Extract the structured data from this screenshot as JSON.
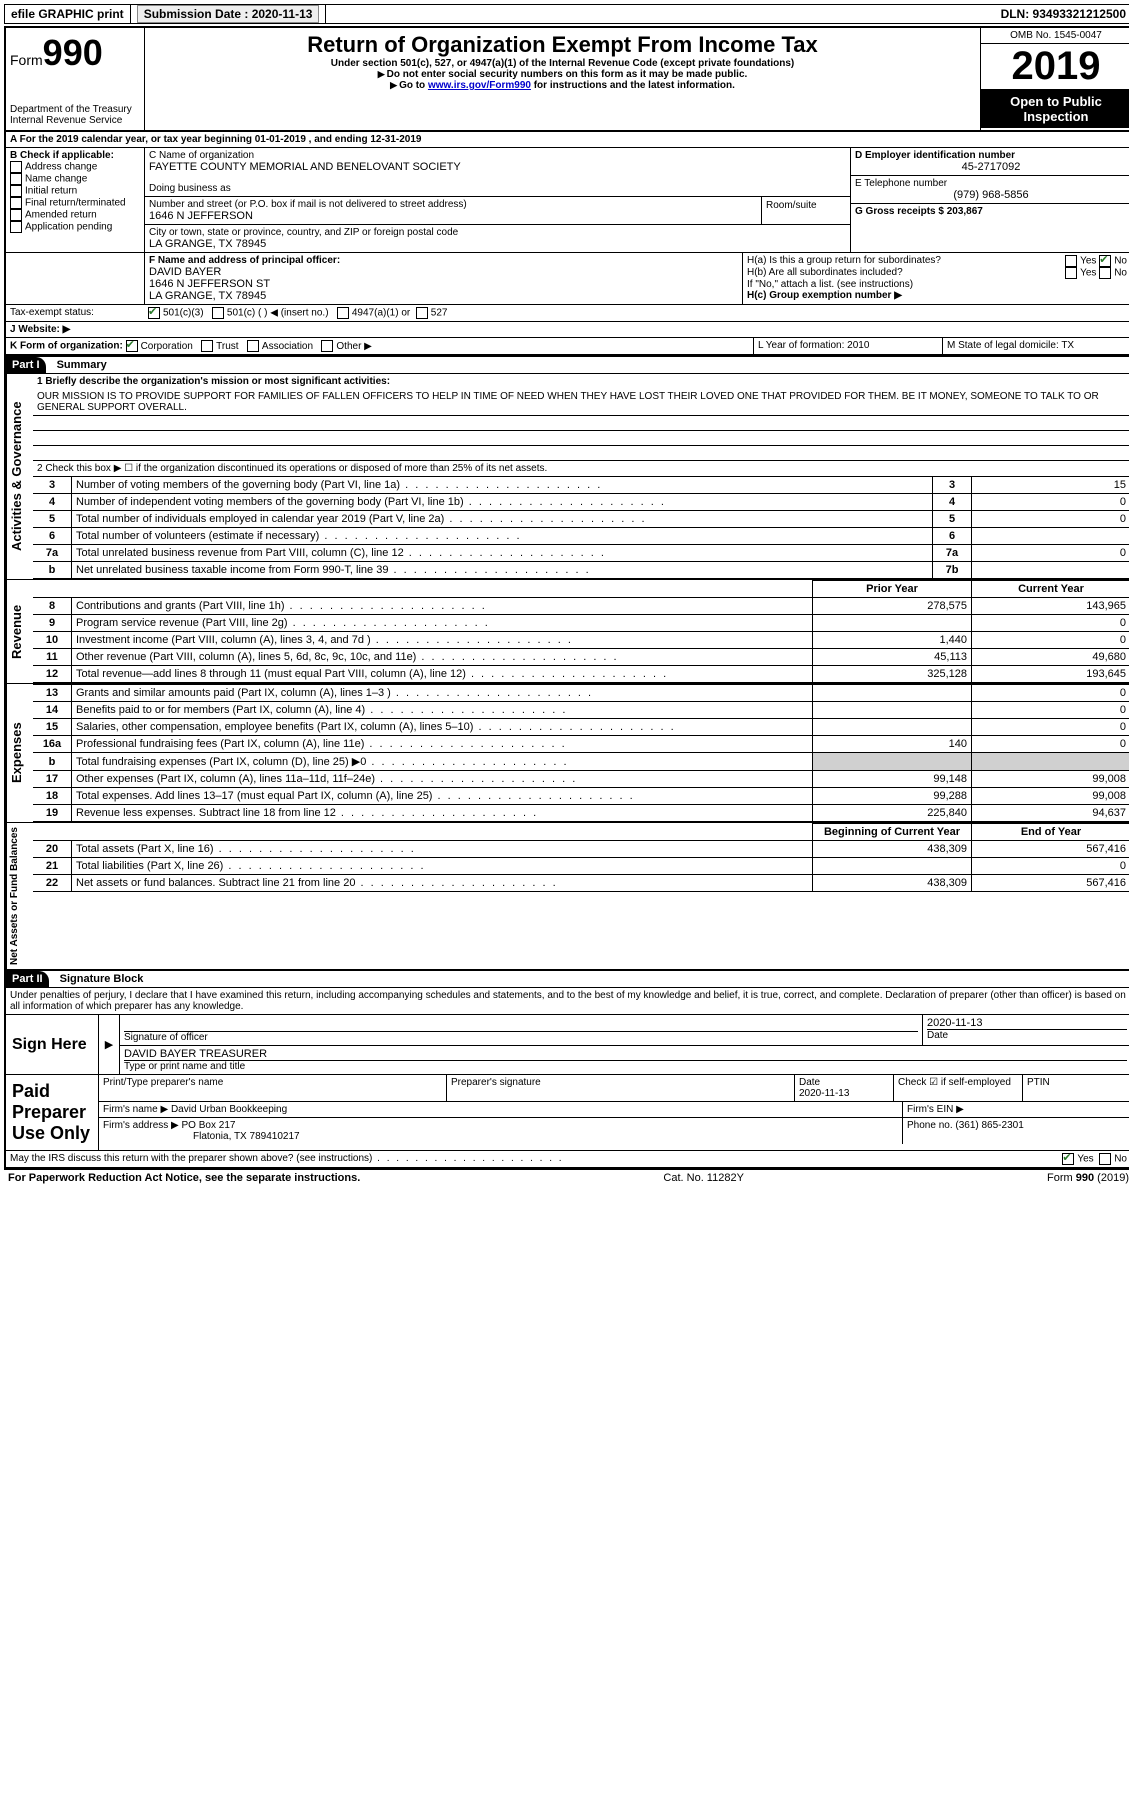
{
  "topbar": {
    "efile": "efile GRAPHIC print",
    "submission_label": "Submission Date : 2020-11-13",
    "dln_label": "DLN: 93493321212500"
  },
  "header": {
    "form_label": "Form",
    "form_number": "990",
    "dept1": "Department of the Treasury",
    "dept2": "Internal Revenue Service",
    "title": "Return of Organization Exempt From Income Tax",
    "subtitle": "Under section 501(c), 527, or 4947(a)(1) of the Internal Revenue Code (except private foundations)",
    "note1": "Do not enter social security numbers on this form as it may be made public.",
    "note2_prefix": "Go to ",
    "note2_link": "www.irs.gov/Form990",
    "note2_suffix": " for instructions and the latest information.",
    "omb": "OMB No. 1545-0047",
    "year": "2019",
    "inspection": "Open to Public Inspection"
  },
  "period": {
    "line": "For the 2019 calendar year, or tax year beginning 01-01-2019   , and ending 12-31-2019"
  },
  "boxB": {
    "label": "B Check if applicable:",
    "items": [
      "Address change",
      "Name change",
      "Initial return",
      "Final return/terminated",
      "Amended return",
      "Application pending"
    ]
  },
  "boxC": {
    "name_label": "C Name of organization",
    "name": "FAYETTE COUNTY MEMORIAL AND BENELOVANT SOCIETY",
    "dba_label": "Doing business as",
    "addr_label": "Number and street (or P.O. box if mail is not delivered to street address)",
    "room_label": "Room/suite",
    "addr": "1646 N JEFFERSON",
    "city_label": "City or town, state or province, country, and ZIP or foreign postal code",
    "city": "LA GRANGE, TX  78945"
  },
  "boxD": {
    "label": "D Employer identification number",
    "value": "45-2717092"
  },
  "boxE": {
    "label": "E Telephone number",
    "value": "(979) 968-5856"
  },
  "boxG": {
    "label": "G Gross receipts $ 203,867"
  },
  "boxF": {
    "label": "F  Name and address of principal officer:",
    "name": "DAVID BAYER",
    "addr1": "1646 N JEFFERSON ST",
    "addr2": "LA GRANGE, TX  78945"
  },
  "boxH": {
    "a_label": "H(a)  Is this a group return for subordinates?",
    "b_label": "H(b)  Are all subordinates included?",
    "b_note": "If \"No,\" attach a list. (see instructions)",
    "c_label": "H(c)  Group exemption number ▶",
    "yes": "Yes",
    "no": "No"
  },
  "boxI": {
    "label": "Tax-exempt status:",
    "opt1": "501(c)(3)",
    "opt2": "501(c) (  ) ◀ (insert no.)",
    "opt3": "4947(a)(1) or",
    "opt4": "527"
  },
  "boxJ": {
    "label": "J   Website: ▶"
  },
  "boxK": {
    "label": "K Form of organization:",
    "opts": [
      "Corporation",
      "Trust",
      "Association",
      "Other ▶"
    ]
  },
  "boxL": {
    "label": "L Year of formation: 2010"
  },
  "boxM": {
    "label": "M State of legal domicile: TX"
  },
  "part1": {
    "title": "Part I",
    "subtitle": "Summary",
    "line1_label": "1  Briefly describe the organization's mission or most significant activities:",
    "mission": "OUR MISSION IS TO PROVIDE SUPPORT FOR FAMILIES OF FALLEN OFFICERS TO HELP IN TIME OF NEED WHEN THEY HAVE LOST THEIR LOVED ONE THAT PROVIDED FOR THEM. BE IT MONEY, SOMEONE TO TALK TO OR GENERAL SUPPORT OVERALL.",
    "line2": "2   Check this box ▶ ☐  if the organization discontinued its operations or disposed of more than 25% of its net assets.",
    "sidebar_gov": "Activities & Governance",
    "sidebar_rev": "Revenue",
    "sidebar_exp": "Expenses",
    "sidebar_net": "Net Assets or Fund Balances",
    "gov_rows": [
      {
        "n": "3",
        "label": "Number of voting members of the governing body (Part VI, line 1a)",
        "box": "3",
        "val": "15"
      },
      {
        "n": "4",
        "label": "Number of independent voting members of the governing body (Part VI, line 1b)",
        "box": "4",
        "val": "0"
      },
      {
        "n": "5",
        "label": "Total number of individuals employed in calendar year 2019 (Part V, line 2a)",
        "box": "5",
        "val": "0"
      },
      {
        "n": "6",
        "label": "Total number of volunteers (estimate if necessary)",
        "box": "6",
        "val": ""
      },
      {
        "n": "7a",
        "label": "Total unrelated business revenue from Part VIII, column (C), line 12",
        "box": "7a",
        "val": "0"
      },
      {
        "n": "b",
        "label": "Net unrelated business taxable income from Form 990-T, line 39",
        "box": "7b",
        "val": ""
      }
    ],
    "col_prior": "Prior Year",
    "col_current": "Current Year",
    "rev_rows": [
      {
        "n": "8",
        "label": "Contributions and grants (Part VIII, line 1h)",
        "prior": "278,575",
        "curr": "143,965"
      },
      {
        "n": "9",
        "label": "Program service revenue (Part VIII, line 2g)",
        "prior": "",
        "curr": "0"
      },
      {
        "n": "10",
        "label": "Investment income (Part VIII, column (A), lines 3, 4, and 7d )",
        "prior": "1,440",
        "curr": "0"
      },
      {
        "n": "11",
        "label": "Other revenue (Part VIII, column (A), lines 5, 6d, 8c, 9c, 10c, and 11e)",
        "prior": "45,113",
        "curr": "49,680"
      },
      {
        "n": "12",
        "label": "Total revenue—add lines 8 through 11 (must equal Part VIII, column (A), line 12)",
        "prior": "325,128",
        "curr": "193,645"
      }
    ],
    "exp_rows": [
      {
        "n": "13",
        "label": "Grants and similar amounts paid (Part IX, column (A), lines 1–3 )",
        "prior": "",
        "curr": "0"
      },
      {
        "n": "14",
        "label": "Benefits paid to or for members (Part IX, column (A), line 4)",
        "prior": "",
        "curr": "0"
      },
      {
        "n": "15",
        "label": "Salaries, other compensation, employee benefits (Part IX, column (A), lines 5–10)",
        "prior": "",
        "curr": "0"
      },
      {
        "n": "16a",
        "label": "Professional fundraising fees (Part IX, column (A), line 11e)",
        "prior": "140",
        "curr": "0"
      },
      {
        "n": "b",
        "label": "Total fundraising expenses (Part IX, column (D), line 25) ▶0",
        "prior": "SHADE",
        "curr": "SHADE"
      },
      {
        "n": "17",
        "label": "Other expenses (Part IX, column (A), lines 11a–11d, 11f–24e)",
        "prior": "99,148",
        "curr": "99,008"
      },
      {
        "n": "18",
        "label": "Total expenses. Add lines 13–17 (must equal Part IX, column (A), line 25)",
        "prior": "99,288",
        "curr": "99,008"
      },
      {
        "n": "19",
        "label": "Revenue less expenses. Subtract line 18 from line 12",
        "prior": "225,840",
        "curr": "94,637"
      }
    ],
    "col_begin": "Beginning of Current Year",
    "col_end": "End of Year",
    "net_rows": [
      {
        "n": "20",
        "label": "Total assets (Part X, line 16)",
        "prior": "438,309",
        "curr": "567,416"
      },
      {
        "n": "21",
        "label": "Total liabilities (Part X, line 26)",
        "prior": "",
        "curr": "0"
      },
      {
        "n": "22",
        "label": "Net assets or fund balances. Subtract line 21 from line 20",
        "prior": "438,309",
        "curr": "567,416"
      }
    ]
  },
  "part2": {
    "title": "Part II",
    "subtitle": "Signature Block",
    "penalty": "Under penalties of perjury, I declare that I have examined this return, including accompanying schedules and statements, and to the best of my knowledge and belief, it is true, correct, and complete. Declaration of preparer (other than officer) is based on all information of which preparer has any knowledge."
  },
  "sign": {
    "here": "Sign Here",
    "sig_label": "Signature of officer",
    "date_label": "Date",
    "date": "2020-11-13",
    "name": "DAVID BAYER  TREASURER",
    "name_label": "Type or print name and title"
  },
  "preparer": {
    "here": "Paid Preparer Use Only",
    "name_label": "Print/Type preparer's name",
    "sig_label": "Preparer's signature",
    "date_label": "Date",
    "date": "2020-11-13",
    "check_label": "Check ☑ if self-employed",
    "ptin_label": "PTIN",
    "firm_name_label": "Firm's name    ▶",
    "firm_name": "David Urban Bookkeeping",
    "firm_ein_label": "Firm's EIN ▶",
    "firm_addr_label": "Firm's address ▶",
    "firm_addr1": "PO Box 217",
    "firm_addr2": "Flatonia, TX  789410217",
    "phone_label": "Phone no. (361) 865-2301"
  },
  "discuss": {
    "label": "May the IRS discuss this return with the preparer shown above? (see instructions)",
    "yes": "Yes",
    "no": "No"
  },
  "footer": {
    "left": "For Paperwork Reduction Act Notice, see the separate instructions.",
    "mid": "Cat. No. 11282Y",
    "right": "Form 990 (2019)"
  }
}
